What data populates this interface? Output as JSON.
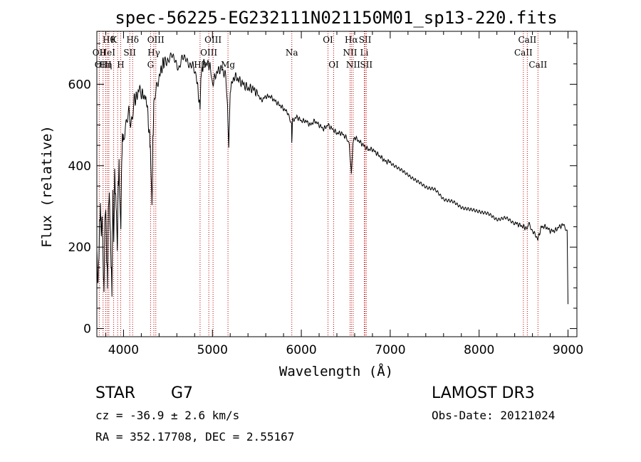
{
  "chart_data": {
    "type": "line",
    "title": "spec-56225-EG232111N021150M01_sp13-220.fits",
    "xlabel": "Wavelength (Å)",
    "ylabel": "Flux (relative)",
    "xlim": [
      3700,
      9100
    ],
    "ylim": [
      -20,
      730
    ],
    "xticks": [
      4000,
      5000,
      6000,
      7000,
      8000,
      9000
    ],
    "yticks": [
      0,
      200,
      400,
      600
    ],
    "series": [
      {
        "name": "flux",
        "x": [
          3700,
          3710,
          3720,
          3730,
          3740,
          3750,
          3760,
          3770,
          3780,
          3790,
          3800,
          3810,
          3820,
          3830,
          3840,
          3850,
          3860,
          3870,
          3880,
          3890,
          3900,
          3910,
          3920,
          3930,
          3940,
          3950,
          3960,
          3970,
          3980,
          3990,
          4000,
          4020,
          4040,
          4060,
          4080,
          4100,
          4120,
          4150,
          4180,
          4200,
          4230,
          4260,
          4290,
          4300,
          4310,
          4320,
          4330,
          4340,
          4360,
          4380,
          4400,
          4430,
          4460,
          4500,
          4540,
          4580,
          4620,
          4660,
          4700,
          4740,
          4780,
          4820,
          4850,
          4861,
          4870,
          4900,
          4950,
          4980,
          5000,
          5050,
          5100,
          5150,
          5170,
          5184,
          5200,
          5250,
          5300,
          5350,
          5400,
          5450,
          5500,
          5550,
          5600,
          5650,
          5700,
          5750,
          5800,
          5850,
          5890,
          5893,
          5900,
          5950,
          6000,
          6050,
          6100,
          6150,
          6200,
          6250,
          6300,
          6350,
          6400,
          6450,
          6500,
          6540,
          6563,
          6580,
          6600,
          6650,
          6700,
          6750,
          6800,
          6850,
          6900,
          6950,
          7000,
          7100,
          7200,
          7300,
          7400,
          7500,
          7600,
          7700,
          7800,
          7900,
          8000,
          8100,
          8200,
          8300,
          8400,
          8450,
          8500,
          8542,
          8560,
          8580,
          8600,
          8662,
          8700,
          8750,
          8800,
          8850,
          8900,
          8950,
          8990,
          9000
        ],
        "values": [
          200,
          110,
          150,
          250,
          300,
          230,
          280,
          170,
          80,
          260,
          300,
          180,
          110,
          300,
          330,
          250,
          160,
          90,
          340,
          200,
          380,
          330,
          290,
          190,
          350,
          400,
          300,
          250,
          420,
          480,
          460,
          500,
          520,
          540,
          500,
          510,
          560,
          570,
          590,
          580,
          570,
          560,
          480,
          450,
          380,
          300,
          460,
          540,
          580,
          600,
          620,
          640,
          660,
          650,
          670,
          660,
          640,
          670,
          660,
          640,
          650,
          620,
          560,
          540,
          620,
          650,
          650,
          640,
          600,
          630,
          640,
          620,
          540,
          440,
          590,
          620,
          610,
          600,
          590,
          590,
          580,
          560,
          570,
          570,
          560,
          550,
          540,
          530,
          500,
          460,
          510,
          520,
          510,
          510,
          500,
          510,
          500,
          490,
          500,
          490,
          480,
          480,
          470,
          450,
          380,
          460,
          470,
          460,
          450,
          440,
          440,
          430,
          420,
          410,
          410,
          390,
          380,
          360,
          350,
          340,
          320,
          310,
          300,
          290,
          290,
          280,
          270,
          270,
          260,
          255,
          250,
          245,
          260,
          250,
          240,
          220,
          250,
          250,
          240,
          240,
          250,
          255,
          240,
          60
        ]
      }
    ],
    "line_markers": [
      {
        "wl": 3835,
        "label": "Hθ",
        "row": 0
      },
      {
        "wl": 3889,
        "label": "K",
        "row": 0
      },
      {
        "wl": 3934,
        "label": "",
        "row": 0
      },
      {
        "wl": 3968,
        "label": "H",
        "row": 2
      },
      {
        "wl": 4102,
        "label": "Hδ",
        "row": 0
      },
      {
        "wl": 3819,
        "label": "HeI",
        "row": 1
      },
      {
        "wl": 4070,
        "label": "SII",
        "row": 1
      },
      {
        "wl": 3727,
        "label": "OII",
        "row": 1
      },
      {
        "wl": 3770,
        "label": "OIII",
        "row": 2
      },
      {
        "wl": 3800,
        "label": "Hη",
        "row": 2
      },
      {
        "wl": 4341,
        "label": "Hγ",
        "row": 1
      },
      {
        "wl": 4363,
        "label": "OIII",
        "row": 0
      },
      {
        "wl": 4304,
        "label": "G",
        "row": 2
      },
      {
        "wl": 4861,
        "label": "Hβ",
        "row": 2
      },
      {
        "wl": 4959,
        "label": "OIII",
        "row": 1
      },
      {
        "wl": 5007,
        "label": "OIII",
        "row": 0
      },
      {
        "wl": 5175,
        "label": "Mg",
        "row": 2
      },
      {
        "wl": 5893,
        "label": "Na",
        "row": 1
      },
      {
        "wl": 6300,
        "label": "OI",
        "row": 0
      },
      {
        "wl": 6364,
        "label": "OI",
        "row": 2
      },
      {
        "wl": 6548,
        "label": "NII",
        "row": 1
      },
      {
        "wl": 6563,
        "label": "Hα",
        "row": 0
      },
      {
        "wl": 6583,
        "label": "NII",
        "row": 2
      },
      {
        "wl": 6708,
        "label": "Li",
        "row": 1
      },
      {
        "wl": 6717,
        "label": "SII",
        "row": 0
      },
      {
        "wl": 6731,
        "label": "SII",
        "row": 2
      },
      {
        "wl": 8498,
        "label": "CaII",
        "row": 1
      },
      {
        "wl": 8542,
        "label": "CaII",
        "row": 0
      },
      {
        "wl": 8662,
        "label": "CaII",
        "row": 2
      }
    ]
  },
  "info": {
    "class_label": "STAR",
    "subclass": "G7",
    "survey": "LAMOST DR3",
    "cz": "cz = -36.9 ± 2.6 km/s",
    "obs_date": "Obs-Date: 20121024",
    "coords": "RA = 352.17708, DEC =   2.55167"
  }
}
